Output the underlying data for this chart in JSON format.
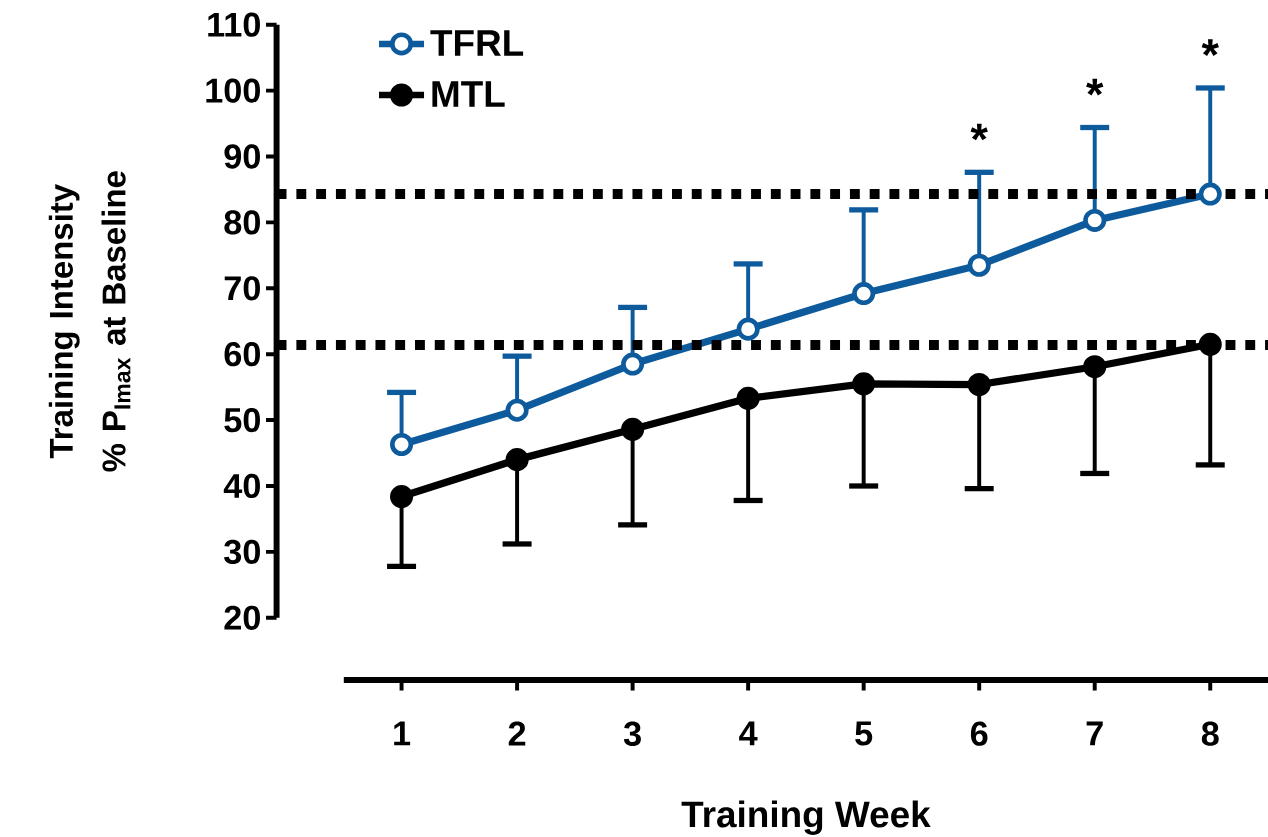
{
  "chart_data": {
    "type": "line",
    "xlabel": "Training Week",
    "ylabel": "Training Intensity % P$_{Imax}$ at Baseline",
    "categories": [
      "1",
      "2",
      "3",
      "4",
      "5",
      "6",
      "7",
      "8"
    ],
    "series": [
      {
        "name": "TFRL",
        "color": "#0d5a9c",
        "values": [
          46.3,
          51.5,
          58.5,
          63.8,
          69.2,
          73.5,
          80.3,
          84.3
        ],
        "errors": [
          [
            46.3,
            54.2
          ],
          [
            51.5,
            59.7
          ],
          [
            58.5,
            67.1
          ],
          [
            63.8,
            73.7
          ],
          [
            69.2,
            81.9
          ],
          [
            73.5,
            87.6
          ],
          [
            80.3,
            94.4
          ],
          [
            84.3,
            100.4
          ]
        ]
      },
      {
        "name": "MTL",
        "color": "#000000",
        "values": [
          38.4,
          44.0,
          48.6,
          53.3,
          55.5,
          55.4,
          58.1,
          61.5
        ],
        "errors": [
          [
            27.8,
            38.4
          ],
          [
            31.2,
            44.0
          ],
          [
            34.1,
            48.6
          ],
          [
            37.8,
            53.3
          ],
          [
            40.0,
            55.5
          ],
          [
            39.6,
            55.4
          ],
          [
            41.9,
            58.1
          ],
          [
            43.2,
            61.5
          ]
        ]
      }
    ],
    "ylim": [
      20,
      110
    ],
    "yticks": [
      20,
      30,
      40,
      50,
      60,
      70,
      80,
      90,
      100,
      110
    ],
    "ref_lines": [
      {
        "axis": "y",
        "value": 84.3,
        "line_style": "dotted",
        "color": "#000000"
      },
      {
        "axis": "y",
        "value": 61.4,
        "line_style": "dotted",
        "color": "#000000"
      }
    ],
    "annotations": [
      {
        "text": "*",
        "x": "6",
        "y": 87.6
      },
      {
        "text": "*",
        "x": "7",
        "y": 94.4
      },
      {
        "text": "*",
        "x": "8",
        "y": 100.4
      }
    ],
    "legend": "top left",
    "marker": "circle",
    "grid": false
  }
}
